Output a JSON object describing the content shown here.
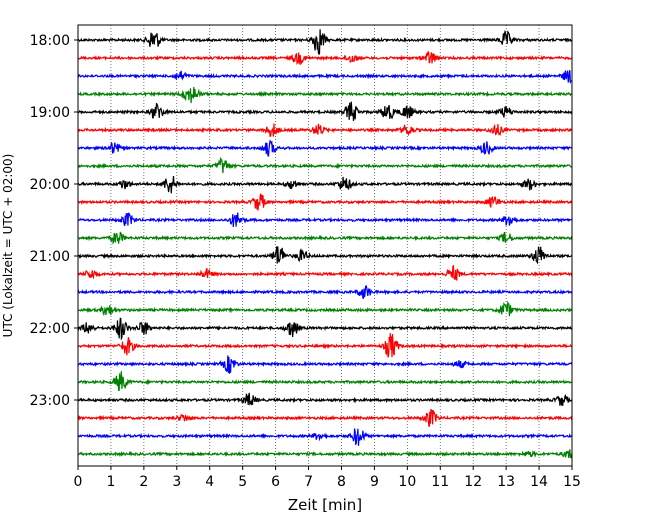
{
  "chart_data": {
    "type": "line",
    "xlabel": "Zeit  [min]",
    "ylabel": "UTC (Lokalzeit = UTC + 02:00)",
    "xlim": [
      0,
      15
    ],
    "x_ticks": [
      "0",
      "1",
      "2",
      "3",
      "4",
      "5",
      "6",
      "7",
      "8",
      "9",
      "10",
      "11",
      "12",
      "13",
      "14",
      "15"
    ],
    "y_tick_labels": [
      "18:00",
      "19:00",
      "20:00",
      "21:00",
      "22:00",
      "23:00"
    ],
    "grid": "vertical dotted",
    "series_colors": [
      "#000000",
      "#ff0000",
      "#0000ff",
      "#008000"
    ],
    "rows": 24,
    "row_interval_min": 15,
    "events": [
      [
        [
          2.3,
          1.0
        ],
        [
          7.3,
          1.3
        ],
        [
          13.0,
          0.7
        ]
      ],
      [
        [
          6.7,
          0.5
        ],
        [
          10.7,
          0.6
        ],
        [
          8.3,
          0.4
        ]
      ],
      [
        [
          3.1,
          0.4
        ],
        [
          14.9,
          0.6
        ]
      ],
      [
        [
          3.5,
          0.6
        ],
        [
          3.3,
          0.4
        ]
      ],
      [
        [
          2.4,
          0.8
        ],
        [
          8.3,
          0.9
        ],
        [
          9.4,
          0.8
        ],
        [
          10.0,
          0.6
        ],
        [
          13.0,
          0.5
        ]
      ],
      [
        [
          5.9,
          0.6
        ],
        [
          7.3,
          0.5
        ],
        [
          10.0,
          0.5
        ],
        [
          12.7,
          0.5
        ]
      ],
      [
        [
          1.1,
          0.5
        ],
        [
          5.8,
          0.7
        ],
        [
          12.4,
          0.6
        ]
      ],
      [
        [
          4.4,
          0.7
        ]
      ],
      [
        [
          1.4,
          0.4
        ],
        [
          2.8,
          0.9
        ],
        [
          6.5,
          0.4
        ],
        [
          8.1,
          0.7
        ],
        [
          13.7,
          0.5
        ]
      ],
      [
        [
          5.5,
          0.8
        ],
        [
          12.6,
          0.5
        ]
      ],
      [
        [
          1.5,
          0.6
        ],
        [
          4.8,
          0.7
        ],
        [
          13.1,
          0.6
        ]
      ],
      [
        [
          1.2,
          0.6
        ],
        [
          13.0,
          0.5
        ]
      ],
      [
        [
          6.1,
          1.0
        ],
        [
          6.8,
          0.5
        ],
        [
          14.0,
          0.9
        ]
      ],
      [
        [
          0.4,
          0.4
        ],
        [
          3.9,
          0.4
        ],
        [
          11.4,
          0.7
        ]
      ],
      [
        [
          8.7,
          0.6
        ]
      ],
      [
        [
          0.9,
          0.5
        ],
        [
          13.0,
          0.7
        ]
      ],
      [
        [
          0.3,
          0.5
        ],
        [
          1.3,
          1.0
        ],
        [
          2.0,
          0.6
        ],
        [
          6.5,
          0.8
        ]
      ],
      [
        [
          1.5,
          0.8
        ],
        [
          9.5,
          1.2
        ]
      ],
      [
        [
          4.6,
          0.8
        ],
        [
          11.6,
          0.3
        ]
      ],
      [
        [
          1.3,
          0.9
        ]
      ],
      [
        [
          5.2,
          0.6
        ],
        [
          14.7,
          0.5
        ]
      ],
      [
        [
          10.7,
          0.8
        ],
        [
          3.2,
          0.3
        ]
      ],
      [
        [
          8.5,
          0.9
        ],
        [
          7.3,
          0.3
        ]
      ],
      [
        [
          14.9,
          0.4
        ],
        [
          13.7,
          0.2
        ]
      ]
    ]
  }
}
